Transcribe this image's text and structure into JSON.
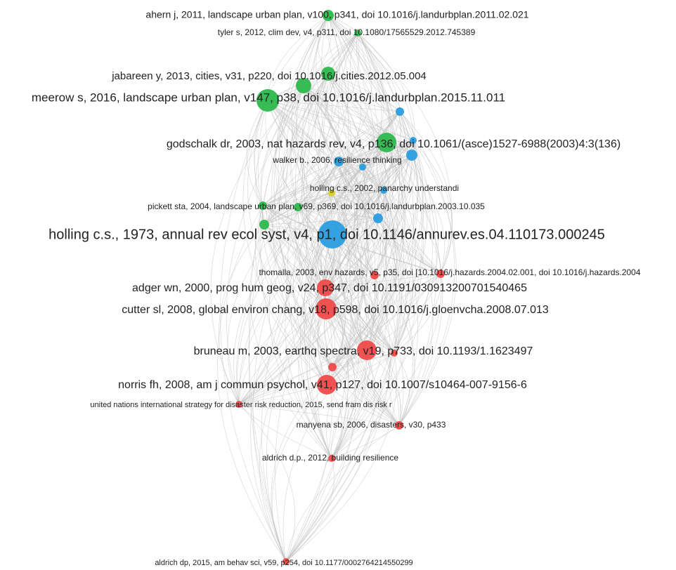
{
  "nodes": [
    {
      "label": "ahern j, 2011, landscape urban plan, v100, p341, doi 10.1016/j.landurbplan.2011.02.021"
    },
    {
      "label": "tyler s, 2012, clim dev, v4, p311, doi 10.1080/17565529.2012.745389"
    },
    {
      "label": "jabareen y, 2013, cities, v31, p220, doi 10.1016/j.cities.2012.05.004"
    },
    {
      "label": "meerow s, 2016, landscape urban plan, v147, p38, doi 10.1016/j.landurbplan.2015.11.011"
    },
    {
      "label": "godschalk dr, 2003, nat hazards rev, v4, p136, doi 10.1061/(asce)1527-6988(2003)4:3(136)"
    },
    {
      "label": "walker b., 2006, resilience thinking"
    },
    {
      "label": "holling c.s., 2002, panarchy understandi"
    },
    {
      "label": "pickett sta, 2004, landscape urban plan, v69, p369, doi 10.1016/j.landurbplan.2003.10.035"
    },
    {
      "label": "holling c.s., 1973, annual rev ecol syst, v4, p1, doi 10.1146/annurev.es.04.110173.000245"
    },
    {
      "label": "thomalla, 2003, env hazards, v5, p35, doi [10.1016/j.hazards.2004.02.001, doi 10.1016/j.hazards.2004"
    },
    {
      "label": "adger wn, 2000, prog hum geog, v24, p347, doi 10.1191/030913200701540465"
    },
    {
      "label": "cutter sl, 2008, global environ chang, v18, p598, doi 10.1016/j.gloenvcha.2008.07.013"
    },
    {
      "label": "bruneau m, 2003, earthq spectra, v19, p733, doi 10.1193/1.1623497"
    },
    {
      "label": "norris fh, 2008, am j commun psychol, v41, p127, doi 10.1007/s10464-007-9156-6"
    },
    {
      "label": "united nations international strategy for disaster risk reduction, 2015, send fram dis risk r"
    },
    {
      "label": "manyena sb, 2006, disasters, v30, p433"
    },
    {
      "label": "aldrich d.p., 2012, building resilience"
    },
    {
      "label": "aldrich dp, 2015, am behav sci, v59, p254, doi 10.1177/0002764214550299"
    }
  ]
}
